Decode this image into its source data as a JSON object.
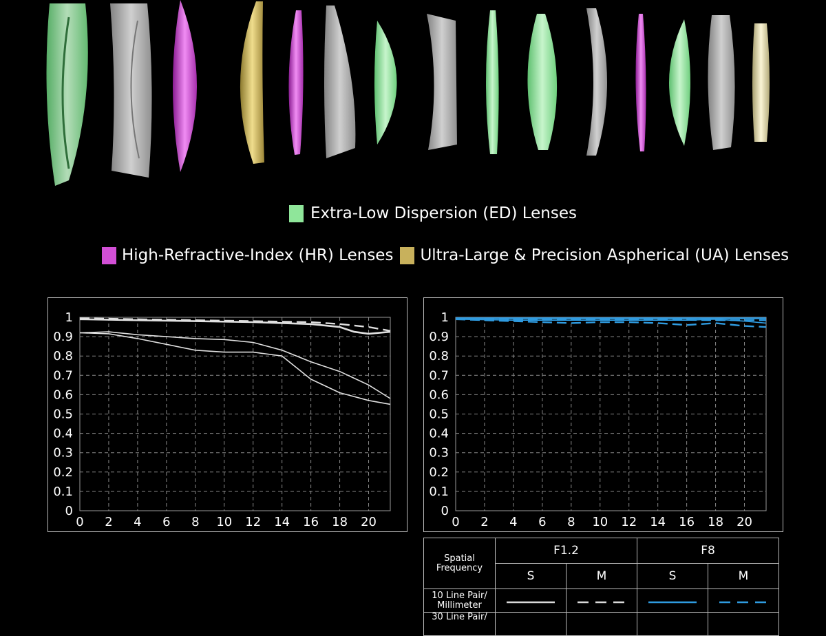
{
  "lens_legend": {
    "ed": {
      "label": "Extra-Low Dispersion (ED) Lenses",
      "color": "#8fe69a"
    },
    "hr": {
      "label": "High-Refractive-Index (HR) Lenses",
      "color": "#d24fd6"
    },
    "ua": {
      "label": "Ultra-Large & Precision Aspherical (UA) Lenses",
      "color": "#c8b15c"
    }
  },
  "lens_elements": [
    {
      "kind": "ed",
      "color": "#8fe69a"
    },
    {
      "kind": "clear",
      "color": "#d8d8d8"
    },
    {
      "kind": "hr",
      "color": "#d24fd6"
    },
    {
      "kind": "ua",
      "color": "#c8b15c"
    },
    {
      "kind": "hr",
      "color": "#b53fbd"
    },
    {
      "kind": "clear",
      "color": "#d8d8d8"
    },
    {
      "kind": "ed",
      "color": "#8fe69a"
    },
    {
      "kind": "clear",
      "color": "#d8d8d8"
    },
    {
      "kind": "ed",
      "color": "#8fe69a"
    },
    {
      "kind": "ed",
      "color": "#8fe69a"
    },
    {
      "kind": "clear",
      "color": "#d8d8d8"
    },
    {
      "kind": "hr",
      "color": "#c046c6"
    },
    {
      "kind": "ed",
      "color": "#8fe69a"
    },
    {
      "kind": "clear",
      "color": "#d8d8d8"
    },
    {
      "kind": "ua",
      "color": "#e2d9a6"
    }
  ],
  "chart_data": [
    {
      "type": "line",
      "title": "",
      "xlabel": "",
      "ylabel": "",
      "xlim": [
        0,
        21.5
      ],
      "ylim": [
        0,
        1
      ],
      "x_ticks": [
        "0",
        "2",
        "4",
        "6",
        "8",
        "10",
        "12",
        "14",
        "16",
        "18",
        "20"
      ],
      "y_ticks": [
        "0",
        "0.1",
        "0.2",
        "0.3",
        "0.4",
        "0.5",
        "0.6",
        "0.7",
        "0.8",
        "0.9",
        "1"
      ],
      "grid": true,
      "series": [
        {
          "color": "#e0e0e0",
          "style": "solid",
          "x": [
            0,
            4,
            8,
            12,
            16,
            18,
            19,
            20,
            21.5
          ],
          "y": [
            0.99,
            0.985,
            0.98,
            0.975,
            0.965,
            0.95,
            0.925,
            0.915,
            0.925
          ]
        },
        {
          "color": "#e0e0e0",
          "style": "dashed",
          "x": [
            0,
            4,
            8,
            12,
            16,
            18,
            20,
            21.5
          ],
          "y": [
            0.995,
            0.99,
            0.985,
            0.98,
            0.975,
            0.965,
            0.95,
            0.93
          ]
        },
        {
          "color": "#e0e0e0",
          "style": "solid-thin",
          "x": [
            0,
            2,
            4,
            6,
            8,
            10,
            12,
            14,
            16,
            18,
            20,
            21.5
          ],
          "y": [
            0.92,
            0.925,
            0.91,
            0.9,
            0.89,
            0.885,
            0.87,
            0.83,
            0.77,
            0.72,
            0.65,
            0.58
          ]
        },
        {
          "color": "#e0e0e0",
          "style": "solid-thin",
          "x": [
            0,
            2,
            4,
            6,
            8,
            10,
            12,
            14,
            15,
            16,
            18,
            20,
            21.5
          ],
          "y": [
            0.92,
            0.915,
            0.89,
            0.86,
            0.83,
            0.82,
            0.82,
            0.8,
            0.74,
            0.68,
            0.61,
            0.57,
            0.55
          ]
        }
      ]
    },
    {
      "type": "line",
      "title": "",
      "xlabel": "",
      "ylabel": "",
      "xlim": [
        0,
        21.5
      ],
      "ylim": [
        0,
        1
      ],
      "x_ticks": [
        "0",
        "2",
        "4",
        "6",
        "8",
        "10",
        "12",
        "14",
        "16",
        "18",
        "20"
      ],
      "y_ticks": [
        "0",
        "0.1",
        "0.2",
        "0.3",
        "0.4",
        "0.5",
        "0.6",
        "0.7",
        "0.8",
        "0.9",
        "1"
      ],
      "grid": true,
      "series": [
        {
          "color": "#2f9be0",
          "style": "solid",
          "x": [
            0,
            6,
            12,
            18,
            21.5
          ],
          "y": [
            0.995,
            0.995,
            0.995,
            0.995,
            0.995
          ]
        },
        {
          "color": "#2f9be0",
          "style": "solid-thin",
          "x": [
            0,
            4,
            8,
            12,
            16,
            18,
            20,
            21.5
          ],
          "y": [
            0.99,
            0.985,
            0.985,
            0.985,
            0.985,
            0.99,
            0.98,
            0.97
          ]
        },
        {
          "color": "#2f9be0",
          "style": "dashed",
          "x": [
            0,
            4,
            6,
            8,
            10,
            12,
            14,
            16,
            18,
            20,
            21.5
          ],
          "y": [
            0.99,
            0.98,
            0.975,
            0.97,
            0.975,
            0.975,
            0.97,
            0.96,
            0.97,
            0.955,
            0.95
          ]
        },
        {
          "color": "#2f9be0",
          "style": "dashed",
          "x": [
            0,
            6,
            12,
            18,
            21.5
          ],
          "y": [
            0.995,
            0.99,
            0.99,
            0.985,
            0.985
          ]
        }
      ]
    }
  ],
  "mtf_legend": {
    "spatial_label_1": "Spatial",
    "spatial_label_2": "Frequency",
    "f12": "F1.2",
    "f8": "F8",
    "s": "S",
    "m": "M",
    "row1_line1": "10 Line Pair/",
    "row1_line2": "Millimeter",
    "row2_line1": "30 Line Pair/",
    "colors": {
      "f12": "#d9d9d9",
      "f8": "#2f9be0"
    }
  }
}
